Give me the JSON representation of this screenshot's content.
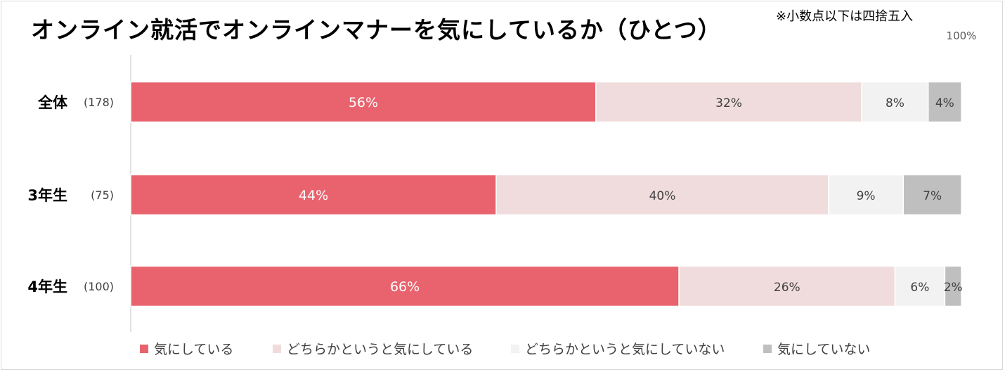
{
  "title": "オンライン就活でオンラインマナーを気にしているか（ひとつ）",
  "note": "※小数点以下は四捨五入",
  "scale_max_label": "100%",
  "chart_data": {
    "type": "bar",
    "orientation": "horizontal",
    "stacked": true,
    "xlim": [
      0,
      100
    ],
    "legend_position": "bottom",
    "categories": [
      "全体",
      "3年生",
      "4年生"
    ],
    "counts": [
      "(178)",
      "(75)",
      "(100)"
    ],
    "series": [
      {
        "name": "気にしている",
        "color": "#e8636e",
        "text_color": "#ffffff",
        "values": [
          56,
          44,
          66
        ],
        "labels": [
          "56%",
          "44%",
          "66%"
        ]
      },
      {
        "name": "どちらかというと気にしている",
        "color": "#f0dcdc",
        "text_color": "#404040",
        "values": [
          32,
          40,
          26
        ],
        "labels": [
          "32%",
          "40%",
          "26%"
        ]
      },
      {
        "name": "どちらかというと気にしていない",
        "color": "#f2f2f2",
        "text_color": "#404040",
        "values": [
          8,
          9,
          6
        ],
        "labels": [
          "8%",
          "9%",
          "6%"
        ]
      },
      {
        "name": "気にしていない",
        "color": "#bfbfbf",
        "text_color": "#404040",
        "values": [
          4,
          7,
          2
        ],
        "labels": [
          "4%",
          "7%",
          "2%"
        ]
      }
    ]
  }
}
